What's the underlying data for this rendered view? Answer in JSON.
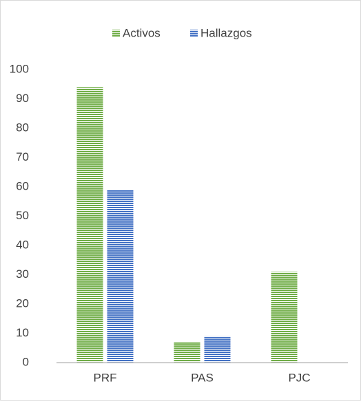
{
  "chart_data": {
    "type": "bar",
    "categories": [
      "PRF",
      "PAS",
      "PJC"
    ],
    "series": [
      {
        "name": "Activos",
        "color": "#70ad47",
        "values": [
          94,
          7,
          31
        ]
      },
      {
        "name": "Hallazgos",
        "color": "#4472c4",
        "values": [
          59,
          9,
          0
        ]
      }
    ],
    "ylim": [
      0,
      100
    ],
    "yticks": [
      0,
      10,
      20,
      30,
      40,
      50,
      60,
      70,
      80,
      90,
      100
    ],
    "grid": false,
    "legend": "top"
  }
}
